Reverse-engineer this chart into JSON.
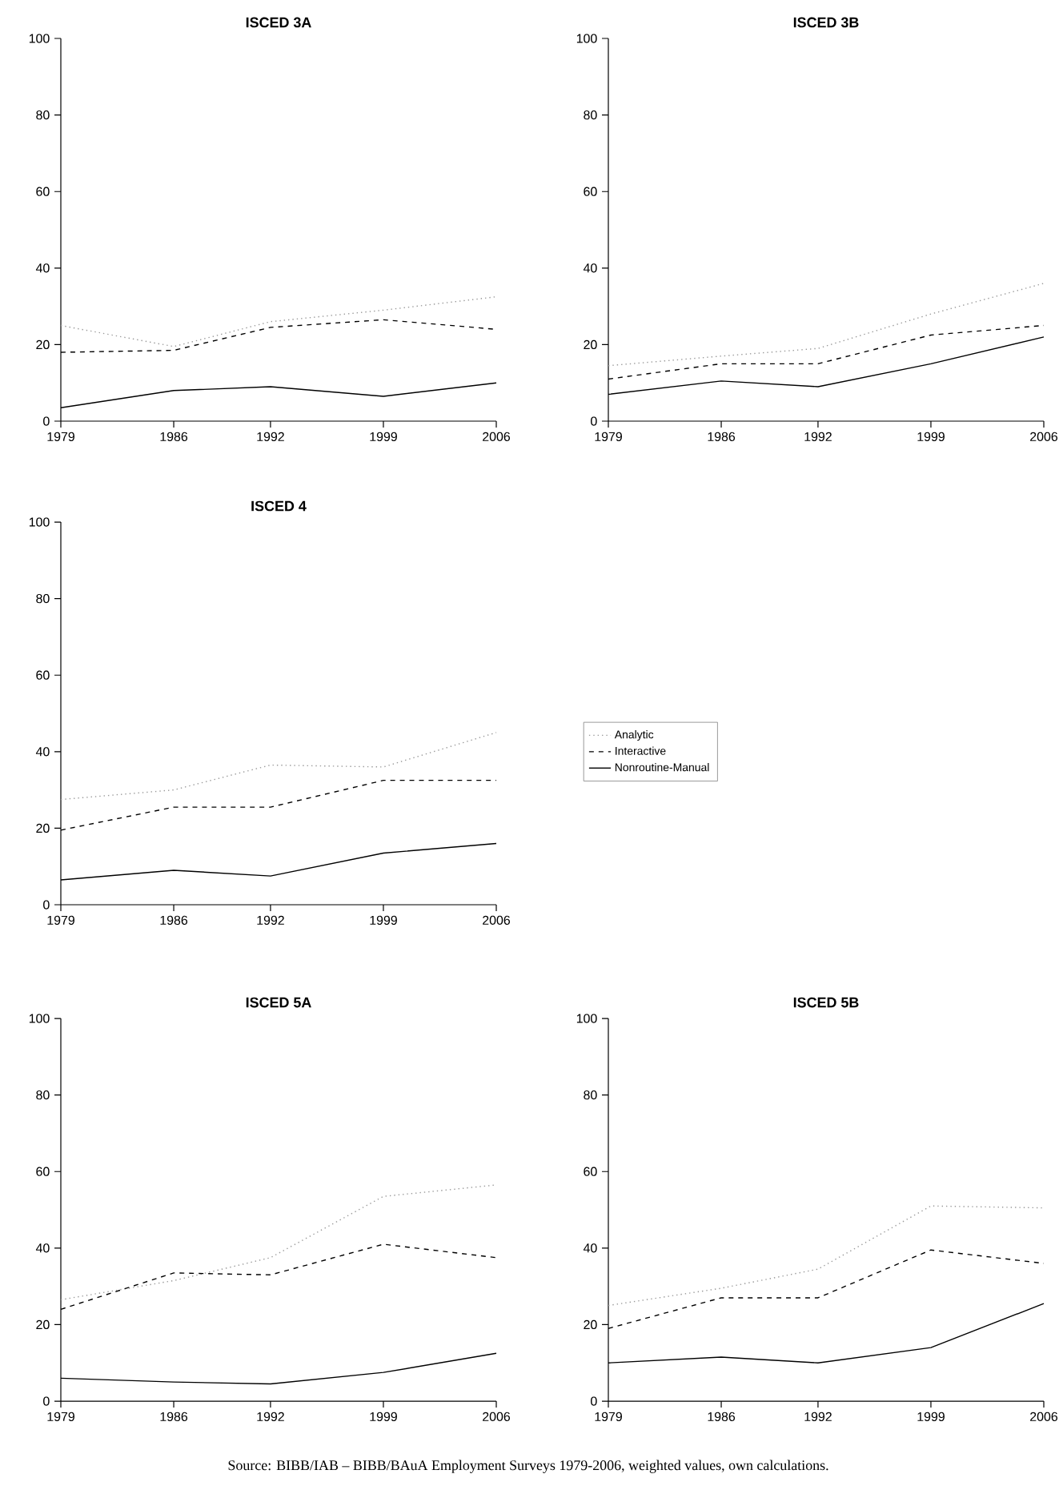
{
  "chart_data": [
    {
      "type": "line",
      "title": "ISCED 3A",
      "x": [
        1979,
        1986,
        1992,
        1999,
        2006
      ],
      "xlim": [
        1979,
        2006
      ],
      "xticks": [
        1979,
        1986,
        1992,
        1999,
        2006
      ],
      "ylim": [
        0,
        100
      ],
      "yticks": [
        0,
        20,
        40,
        60,
        80,
        100
      ],
      "series": [
        {
          "color": "#999999",
          "line_style": "dotted",
          "values": [
            25,
            19.5,
            26,
            29,
            32.5
          ]
        },
        {
          "color": "#000000",
          "line_style": "dashed",
          "values": [
            18,
            18.5,
            24.5,
            26.5,
            24
          ]
        },
        {
          "color": "#000000",
          "line_style": "solid",
          "values": [
            3.5,
            8,
            9,
            6.5,
            10
          ]
        }
      ]
    },
    {
      "type": "line",
      "title": "ISCED 3B",
      "x": [
        1979,
        1986,
        1992,
        1999,
        2006
      ],
      "xlim": [
        1979,
        2006
      ],
      "xticks": [
        1979,
        1986,
        1992,
        1999,
        2006
      ],
      "ylim": [
        0,
        100
      ],
      "yticks": [
        0,
        20,
        40,
        60,
        80,
        100
      ],
      "series": [
        {
          "color": "#999999",
          "line_style": "dotted",
          "values": [
            14.5,
            17,
            19,
            28,
            36
          ]
        },
        {
          "color": "#000000",
          "line_style": "dashed",
          "values": [
            11,
            15,
            15,
            22.5,
            25
          ]
        },
        {
          "color": "#000000",
          "line_style": "solid",
          "values": [
            7,
            10.5,
            9,
            15,
            22
          ]
        }
      ]
    },
    {
      "type": "line",
      "title": "ISCED 4",
      "x": [
        1979,
        1986,
        1992,
        1999,
        2006
      ],
      "xlim": [
        1979,
        2006
      ],
      "xticks": [
        1979,
        1986,
        1992,
        1999,
        2006
      ],
      "ylim": [
        0,
        100
      ],
      "yticks": [
        0,
        20,
        40,
        60,
        80,
        100
      ],
      "legend": "right",
      "series": [
        {
          "name": "Analytic",
          "color": "#999999",
          "line_style": "dotted",
          "values": [
            27.5,
            30,
            36.5,
            36,
            45
          ]
        },
        {
          "name": "Interactive",
          "color": "#000000",
          "line_style": "dashed",
          "values": [
            19.5,
            25.5,
            25.5,
            32.5,
            32.5
          ]
        },
        {
          "name": "Nonroutine-Manual",
          "color": "#000000",
          "line_style": "solid",
          "values": [
            6.5,
            9,
            7.5,
            13.5,
            16
          ]
        }
      ]
    },
    {
      "type": "line",
      "title": "ISCED 5A",
      "x": [
        1979,
        1986,
        1992,
        1999,
        2006
      ],
      "xlim": [
        1979,
        2006
      ],
      "xticks": [
        1979,
        1986,
        1992,
        1999,
        2006
      ],
      "ylim": [
        0,
        100
      ],
      "yticks": [
        0,
        20,
        40,
        60,
        80,
        100
      ],
      "series": [
        {
          "color": "#999999",
          "line_style": "dotted",
          "values": [
            26.5,
            31.5,
            37.5,
            53.5,
            56.5
          ]
        },
        {
          "color": "#000000",
          "line_style": "dashed",
          "values": [
            24,
            33.5,
            33,
            41,
            37.5
          ]
        },
        {
          "color": "#000000",
          "line_style": "solid",
          "values": [
            6,
            5,
            4.5,
            7.5,
            12.5
          ]
        }
      ]
    },
    {
      "type": "line",
      "title": "ISCED 5B",
      "x": [
        1979,
        1986,
        1992,
        1999,
        2006
      ],
      "xlim": [
        1979,
        2006
      ],
      "xticks": [
        1979,
        1986,
        1992,
        1999,
        2006
      ],
      "ylim": [
        0,
        100
      ],
      "yticks": [
        0,
        20,
        40,
        60,
        80,
        100
      ],
      "annotations": [
        "Source: BIBB/IAB – BIBB/BAuA Employment Surveys 1979-2006, weighted values, own calculations."
      ],
      "series": [
        {
          "color": "#999999",
          "line_style": "dotted",
          "values": [
            25,
            29.5,
            34.5,
            51,
            50.5
          ]
        },
        {
          "color": "#000000",
          "line_style": "dashed",
          "values": [
            19,
            27,
            27,
            39.5,
            36
          ]
        },
        {
          "color": "#000000",
          "line_style": "solid",
          "values": [
            10,
            11.5,
            10,
            14,
            25.5
          ]
        }
      ]
    }
  ]
}
